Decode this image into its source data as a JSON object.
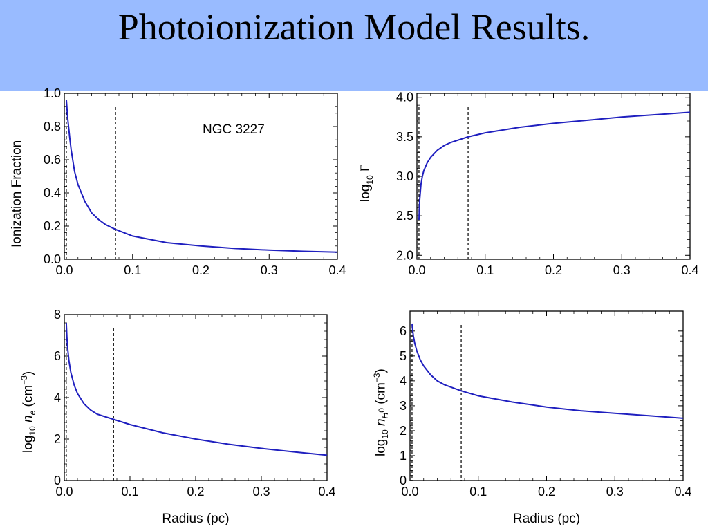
{
  "slide": {
    "title": "Photoionization Model Results."
  },
  "colors": {
    "title_bar": "#99bbff",
    "curve": "#1f1fbf"
  },
  "chart_data": [
    {
      "id": "ionization",
      "type": "line",
      "xlabel": "",
      "ylabel": "Ionization Fraction",
      "annotation": "NGC 3227",
      "xlim": [
        0,
        0.4
      ],
      "ylim": [
        0,
        1.0
      ],
      "xticks": [
        "0.0",
        "0.1",
        "0.2",
        "0.3",
        "0.4"
      ],
      "yticks": [
        "0.0",
        "0.2",
        "0.4",
        "0.6",
        "0.8",
        "1.0"
      ],
      "vlines": [
        0.003,
        0.075
      ],
      "x": [
        0.003,
        0.005,
        0.008,
        0.01,
        0.015,
        0.02,
        0.03,
        0.04,
        0.05,
        0.06,
        0.075,
        0.1,
        0.15,
        0.2,
        0.25,
        0.3,
        0.35,
        0.4
      ],
      "y": [
        0.96,
        0.85,
        0.73,
        0.66,
        0.53,
        0.45,
        0.35,
        0.28,
        0.24,
        0.21,
        0.18,
        0.14,
        0.1,
        0.08,
        0.065,
        0.055,
        0.048,
        0.043
      ]
    },
    {
      "id": "gamma",
      "type": "line",
      "xlabel": "",
      "ylabel_parts": [
        "log",
        "10",
        " Γ"
      ],
      "xlim": [
        0,
        0.4
      ],
      "ylim": [
        1.95,
        4.05
      ],
      "xticks": [
        "0.0",
        "0.1",
        "0.2",
        "0.3",
        "0.4"
      ],
      "yticks": [
        "2.0",
        "2.5",
        "3.0",
        "3.5",
        "4.0"
      ],
      "vlines": [
        0.003,
        0.075
      ],
      "x": [
        0.003,
        0.004,
        0.006,
        0.008,
        0.01,
        0.015,
        0.02,
        0.03,
        0.04,
        0.05,
        0.075,
        0.1,
        0.15,
        0.2,
        0.25,
        0.3,
        0.35,
        0.4
      ],
      "y": [
        2.45,
        2.7,
        2.9,
        3.0,
        3.07,
        3.17,
        3.24,
        3.33,
        3.39,
        3.43,
        3.5,
        3.55,
        3.62,
        3.67,
        3.71,
        3.75,
        3.78,
        3.81
      ]
    },
    {
      "id": "ne",
      "type": "line",
      "xlabel": "Radius (pc)",
      "ylabel_parts": [
        "log",
        "10",
        " ",
        "n",
        "e",
        " (cm",
        "−3",
        ")"
      ],
      "xlim": [
        0,
        0.4
      ],
      "ylim": [
        0,
        8
      ],
      "xticks": [
        "0.0",
        "0.1",
        "0.2",
        "0.3",
        "0.4"
      ],
      "yticks": [
        "0",
        "2",
        "4",
        "6",
        "8"
      ],
      "vlines": [
        0.003,
        0.075
      ],
      "x": [
        0.003,
        0.004,
        0.005,
        0.007,
        0.01,
        0.015,
        0.02,
        0.03,
        0.04,
        0.05,
        0.06,
        0.075,
        0.1,
        0.15,
        0.2,
        0.25,
        0.3,
        0.35,
        0.4
      ],
      "y": [
        7.6,
        6.9,
        6.4,
        5.8,
        5.2,
        4.6,
        4.2,
        3.7,
        3.4,
        3.2,
        3.1,
        2.95,
        2.7,
        2.3,
        2.0,
        1.75,
        1.55,
        1.38,
        1.22
      ]
    },
    {
      "id": "nh0",
      "type": "line",
      "xlabel": "Radius (pc)",
      "ylabel_parts": [
        "log",
        "10",
        " ",
        "n",
        "H",
        "0",
        " (cm",
        "−3",
        ")"
      ],
      "xlim": [
        0,
        0.4
      ],
      "ylim": [
        0,
        6.8
      ],
      "xticks": [
        "0.0",
        "0.1",
        "0.2",
        "0.3",
        "0.4"
      ],
      "yticks": [
        "0",
        "1",
        "2",
        "3",
        "4",
        "5",
        "6"
      ],
      "vlines": [
        0.003,
        0.075
      ],
      "x": [
        0.003,
        0.004,
        0.005,
        0.007,
        0.01,
        0.015,
        0.02,
        0.03,
        0.04,
        0.05,
        0.06,
        0.075,
        0.1,
        0.15,
        0.2,
        0.25,
        0.3,
        0.35,
        0.4
      ],
      "y": [
        6.3,
        6.0,
        5.8,
        5.5,
        5.2,
        4.85,
        4.6,
        4.25,
        4.0,
        3.85,
        3.75,
        3.6,
        3.4,
        3.15,
        2.95,
        2.8,
        2.7,
        2.6,
        2.5
      ]
    }
  ]
}
